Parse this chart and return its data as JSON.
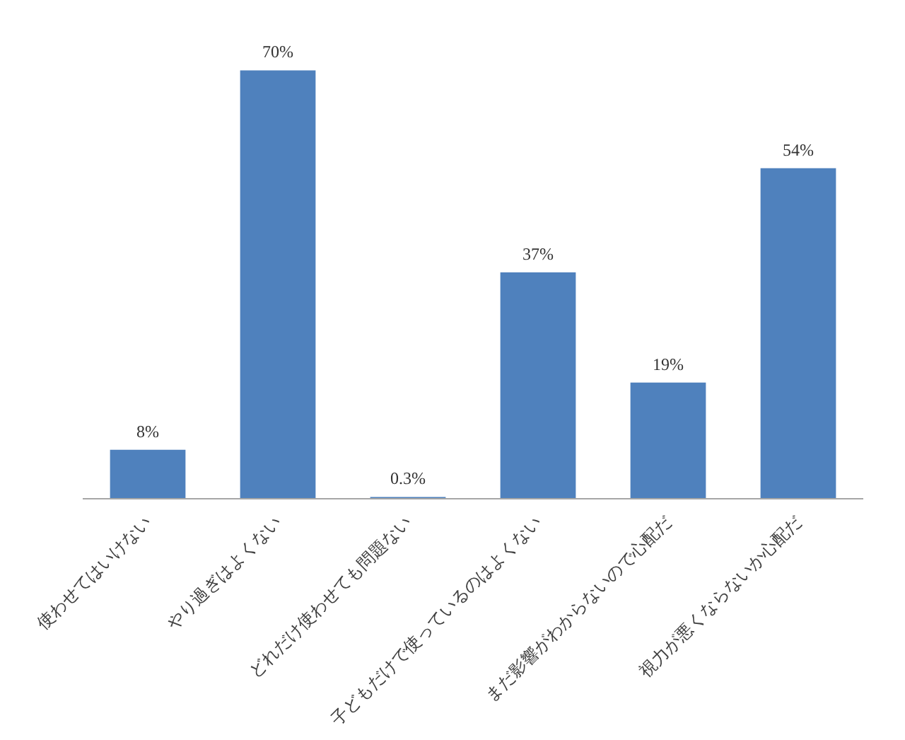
{
  "chart_data": {
    "type": "bar",
    "categories": [
      "使わせてはいけない",
      "やり過ぎはよくない",
      "どれだけ使わせても問題ない",
      "子どもだけで使っているのはよくない",
      "まだ影響がわからないので心配だ",
      "視力が悪くならないか心配だ"
    ],
    "values": [
      8,
      70,
      0.3,
      37,
      19,
      54
    ],
    "value_labels": [
      "8%",
      "70%",
      "0.3%",
      "37%",
      "19%",
      "54%"
    ],
    "color": "#4f81bd",
    "grid": false
  }
}
